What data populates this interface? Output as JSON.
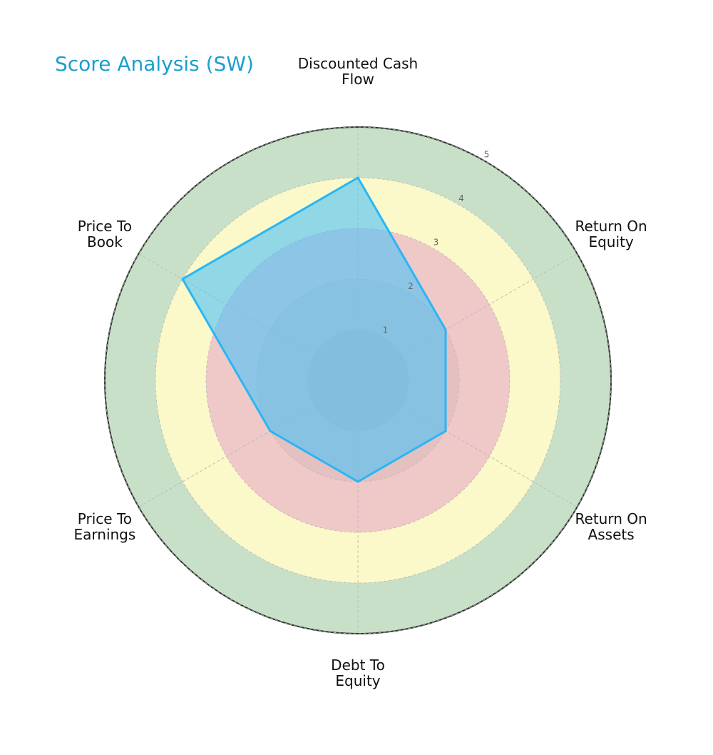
{
  "chart_data": {
    "type": "radar",
    "title": "Score Analysis (SW)",
    "title_color": "#1a9fce",
    "axes": [
      [
        "Discounted Cash",
        "Flow"
      ],
      [
        "Return On",
        "Equity"
      ],
      [
        "Return On",
        "Assets"
      ],
      [
        "Debt To",
        "Equity"
      ],
      [
        "Price To",
        "Earnings"
      ],
      [
        "Price To",
        "Book"
      ]
    ],
    "series": [
      {
        "values": [
          4,
          2,
          2,
          2,
          2,
          4
        ],
        "color": "#29b6f6",
        "fill": "#4fc3f7"
      }
    ],
    "rlim": [
      0,
      5
    ],
    "rticks": [
      "1",
      "2",
      "3",
      "4",
      "5"
    ],
    "bands": [
      {
        "from": 0,
        "to": 1,
        "color": "#f8d0d0"
      },
      {
        "from": 1,
        "to": 2,
        "color": "#f8d0d0"
      },
      {
        "from": 2,
        "to": 3,
        "color": "#f8d0d0"
      },
      {
        "from": 3,
        "to": 4,
        "color": "#fbf8c9"
      },
      {
        "from": 4,
        "to": 5,
        "color": "#c8e0c8"
      }
    ],
    "grid": true,
    "legend": false
  }
}
